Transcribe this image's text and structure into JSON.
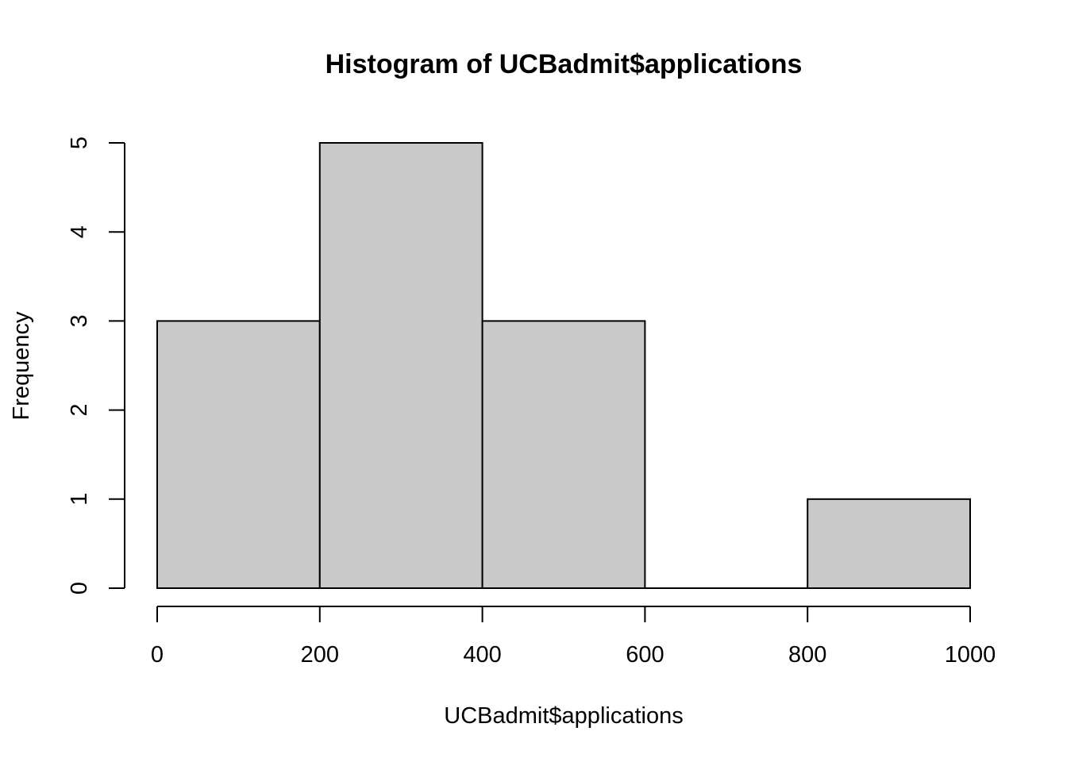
{
  "chart_data": {
    "type": "bar",
    "title": "Histogram of UCBadmit$applications",
    "xlabel": "UCBadmit$applications",
    "ylabel": "Frequency",
    "bins": [
      {
        "from": 0,
        "to": 200,
        "count": 3
      },
      {
        "from": 200,
        "to": 400,
        "count": 5
      },
      {
        "from": 400,
        "to": 600,
        "count": 3
      },
      {
        "from": 600,
        "to": 800,
        "count": 0
      },
      {
        "from": 800,
        "to": 1000,
        "count": 1
      }
    ],
    "xlim": [
      0,
      1000
    ],
    "ylim": [
      0,
      5
    ],
    "x_ticks": [
      0,
      200,
      400,
      600,
      800,
      1000
    ],
    "y_ticks": [
      0,
      1,
      2,
      3,
      4,
      5
    ],
    "bar_color": "#c9c9c9",
    "grid": false,
    "legend": "none"
  }
}
